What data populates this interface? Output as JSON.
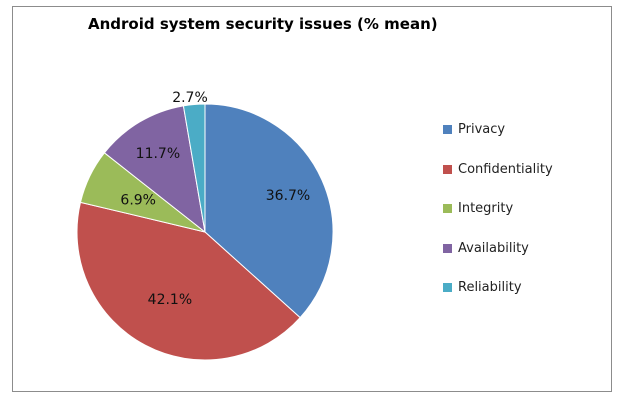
{
  "chart_data": {
    "type": "pie",
    "title": "Android system security issues (% mean)",
    "legend_position": "right",
    "start_angle_deg": 0,
    "direction": "clockwise",
    "slices": [
      {
        "label": "Privacy",
        "value": 36.7,
        "value_label": "36.7%",
        "color": "#4f81bd"
      },
      {
        "label": "Confidentiality",
        "value": 42.1,
        "value_label": "42.1%",
        "color": "#c0504d"
      },
      {
        "label": "Integrity",
        "value": 6.9,
        "value_label": "6.9%",
        "color": "#9bbb59"
      },
      {
        "label": "Availability",
        "value": 11.7,
        "value_label": "11.7%",
        "color": "#8064a2"
      },
      {
        "label": "Reliability",
        "value": 2.7,
        "value_label": "2.7%",
        "color": "#4bacc6"
      }
    ]
  }
}
